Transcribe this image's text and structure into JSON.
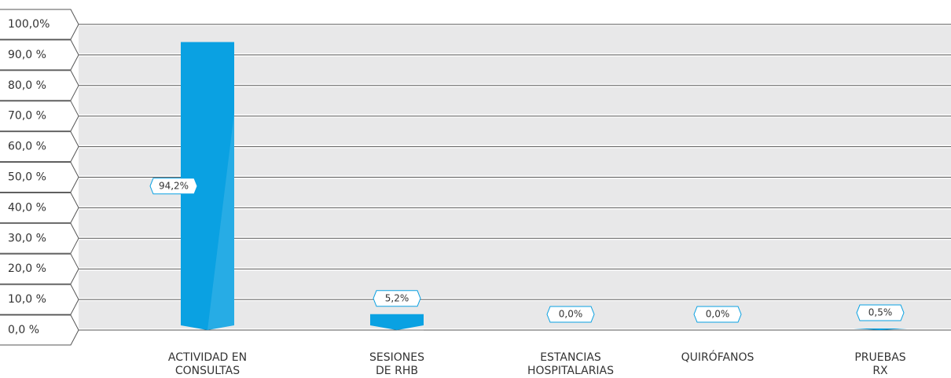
{
  "chart_data": {
    "type": "bar",
    "categories": [
      [
        "ACTIVIDAD EN",
        "CONSULTAS"
      ],
      [
        "SESIONES",
        "DE RHB"
      ],
      [
        "ESTANCIAS",
        "HOSPITALARIAS"
      ],
      [
        "QUIRÓFANOS"
      ],
      [
        "PRUEBAS",
        "RX"
      ]
    ],
    "values": [
      94.2,
      5.2,
      0.0,
      0.0,
      0.5
    ],
    "value_labels": [
      "94,2%",
      "5,2%",
      "0,0%",
      "0,0%",
      "0,5%"
    ],
    "color": "#0aa1e2",
    "ylim": [
      0,
      100
    ],
    "yticks": [
      {
        "value": 0,
        "label": "0,0 %"
      },
      {
        "value": 10,
        "label": "10,0 %"
      },
      {
        "value": 20,
        "label": "20,0 %"
      },
      {
        "value": 30,
        "label": "30,0 %"
      },
      {
        "value": 40,
        "label": "40,0 %"
      },
      {
        "value": 50,
        "label": "50,0 %"
      },
      {
        "value": 60,
        "label": "60,0 %"
      },
      {
        "value": 70,
        "label": "70,0 %"
      },
      {
        "value": 80,
        "label": "80,0 %"
      },
      {
        "value": 90,
        "label": "90,0 %"
      },
      {
        "value": 100,
        "label": "100,0%"
      }
    ],
    "grid": true
  }
}
